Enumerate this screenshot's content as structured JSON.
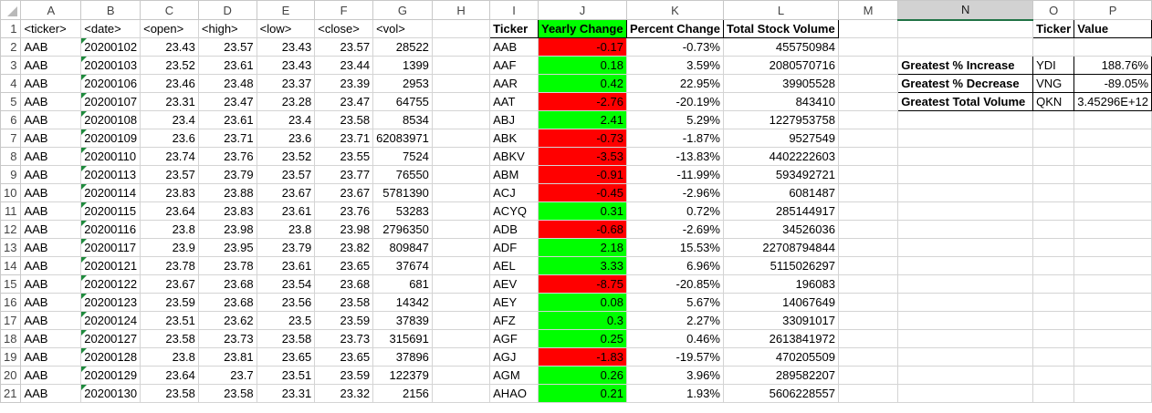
{
  "columns": [
    "A",
    "B",
    "C",
    "D",
    "E",
    "F",
    "G",
    "H",
    "I",
    "J",
    "K",
    "L",
    "M",
    "N",
    "O",
    "P"
  ],
  "headers": {
    "ticker": "<ticker>",
    "date": "<date>",
    "open": "<open>",
    "high": "<high>",
    "low": "<low>",
    "close": "<close>",
    "vol": "<vol>",
    "r_ticker": "Ticker",
    "r_yearly": "Yearly Change",
    "r_percent": "Percent Change",
    "r_volume": "Total Stock Volume",
    "s_ticker": "Ticker",
    "s_value": "Value"
  },
  "rows": [
    {
      "n": "2",
      "ticker": "AAB",
      "date": "20200102",
      "open": "23.43",
      "high": "23.57",
      "low": "23.43",
      "close": "23.57",
      "vol": "28522",
      "r_ticker": "AAB",
      "yearly": "-0.17",
      "pct": "-0.73%",
      "total": "455750984",
      "status": "neg"
    },
    {
      "n": "3",
      "ticker": "AAB",
      "date": "20200103",
      "open": "23.52",
      "high": "23.61",
      "low": "23.43",
      "close": "23.44",
      "vol": "1399",
      "r_ticker": "AAF",
      "yearly": "0.18",
      "pct": "3.59%",
      "total": "2080570716",
      "status": "pos"
    },
    {
      "n": "4",
      "ticker": "AAB",
      "date": "20200106",
      "open": "23.46",
      "high": "23.48",
      "low": "23.37",
      "close": "23.39",
      "vol": "2953",
      "r_ticker": "AAR",
      "yearly": "0.42",
      "pct": "22.95%",
      "total": "39905528",
      "status": "pos"
    },
    {
      "n": "5",
      "ticker": "AAB",
      "date": "20200107",
      "open": "23.31",
      "high": "23.47",
      "low": "23.28",
      "close": "23.47",
      "vol": "64755",
      "r_ticker": "AAT",
      "yearly": "-2.76",
      "pct": "-20.19%",
      "total": "843410",
      "status": "neg"
    },
    {
      "n": "6",
      "ticker": "AAB",
      "date": "20200108",
      "open": "23.4",
      "high": "23.61",
      "low": "23.4",
      "close": "23.58",
      "vol": "8534",
      "r_ticker": "ABJ",
      "yearly": "2.41",
      "pct": "5.29%",
      "total": "1227953758",
      "status": "pos"
    },
    {
      "n": "7",
      "ticker": "AAB",
      "date": "20200109",
      "open": "23.6",
      "high": "23.71",
      "low": "23.6",
      "close": "23.71",
      "vol": "62083971",
      "r_ticker": "ABK",
      "yearly": "-0.73",
      "pct": "-1.87%",
      "total": "9527549",
      "status": "neg"
    },
    {
      "n": "8",
      "ticker": "AAB",
      "date": "20200110",
      "open": "23.74",
      "high": "23.76",
      "low": "23.52",
      "close": "23.55",
      "vol": "7524",
      "r_ticker": "ABKV",
      "yearly": "-3.53",
      "pct": "-13.83%",
      "total": "4402222603",
      "status": "neg"
    },
    {
      "n": "9",
      "ticker": "AAB",
      "date": "20200113",
      "open": "23.57",
      "high": "23.79",
      "low": "23.57",
      "close": "23.77",
      "vol": "76550",
      "r_ticker": "ABM",
      "yearly": "-0.91",
      "pct": "-11.99%",
      "total": "593492721",
      "status": "neg"
    },
    {
      "n": "10",
      "ticker": "AAB",
      "date": "20200114",
      "open": "23.83",
      "high": "23.88",
      "low": "23.67",
      "close": "23.67",
      "vol": "5781390",
      "r_ticker": "ACJ",
      "yearly": "-0.45",
      "pct": "-2.96%",
      "total": "6081487",
      "status": "neg"
    },
    {
      "n": "11",
      "ticker": "AAB",
      "date": "20200115",
      "open": "23.64",
      "high": "23.83",
      "low": "23.61",
      "close": "23.76",
      "vol": "53283",
      "r_ticker": "ACYQ",
      "yearly": "0.31",
      "pct": "0.72%",
      "total": "285144917",
      "status": "pos"
    },
    {
      "n": "12",
      "ticker": "AAB",
      "date": "20200116",
      "open": "23.8",
      "high": "23.98",
      "low": "23.8",
      "close": "23.98",
      "vol": "2796350",
      "r_ticker": "ADB",
      "yearly": "-0.68",
      "pct": "-2.69%",
      "total": "34526036",
      "status": "neg"
    },
    {
      "n": "13",
      "ticker": "AAB",
      "date": "20200117",
      "open": "23.9",
      "high": "23.95",
      "low": "23.79",
      "close": "23.82",
      "vol": "809847",
      "r_ticker": "ADF",
      "yearly": "2.18",
      "pct": "15.53%",
      "total": "22708794844",
      "status": "pos"
    },
    {
      "n": "14",
      "ticker": "AAB",
      "date": "20200121",
      "open": "23.78",
      "high": "23.78",
      "low": "23.61",
      "close": "23.65",
      "vol": "37674",
      "r_ticker": "AEL",
      "yearly": "3.33",
      "pct": "6.96%",
      "total": "5115026297",
      "status": "pos"
    },
    {
      "n": "15",
      "ticker": "AAB",
      "date": "20200122",
      "open": "23.67",
      "high": "23.68",
      "low": "23.54",
      "close": "23.68",
      "vol": "681",
      "r_ticker": "AEV",
      "yearly": "-8.75",
      "pct": "-20.85%",
      "total": "196083",
      "status": "neg"
    },
    {
      "n": "16",
      "ticker": "AAB",
      "date": "20200123",
      "open": "23.59",
      "high": "23.68",
      "low": "23.56",
      "close": "23.58",
      "vol": "14342",
      "r_ticker": "AEY",
      "yearly": "0.08",
      "pct": "5.67%",
      "total": "14067649",
      "status": "pos"
    },
    {
      "n": "17",
      "ticker": "AAB",
      "date": "20200124",
      "open": "23.51",
      "high": "23.62",
      "low": "23.5",
      "close": "23.59",
      "vol": "37839",
      "r_ticker": "AFZ",
      "yearly": "0.3",
      "pct": "2.27%",
      "total": "33091017",
      "status": "pos"
    },
    {
      "n": "18",
      "ticker": "AAB",
      "date": "20200127",
      "open": "23.58",
      "high": "23.73",
      "low": "23.58",
      "close": "23.73",
      "vol": "315691",
      "r_ticker": "AGF",
      "yearly": "0.25",
      "pct": "0.46%",
      "total": "2613841972",
      "status": "pos"
    },
    {
      "n": "19",
      "ticker": "AAB",
      "date": "20200128",
      "open": "23.8",
      "high": "23.81",
      "low": "23.65",
      "close": "23.65",
      "vol": "37896",
      "r_ticker": "AGJ",
      "yearly": "-1.83",
      "pct": "-19.57%",
      "total": "470205509",
      "status": "neg"
    },
    {
      "n": "20",
      "ticker": "AAB",
      "date": "20200129",
      "open": "23.64",
      "high": "23.7",
      "low": "23.51",
      "close": "23.59",
      "vol": "122379",
      "r_ticker": "AGM",
      "yearly": "0.26",
      "pct": "3.96%",
      "total": "289582207",
      "status": "pos"
    },
    {
      "n": "21",
      "ticker": "AAB",
      "date": "20200130",
      "open": "23.58",
      "high": "23.58",
      "low": "23.31",
      "close": "23.32",
      "vol": "2156",
      "r_ticker": "AHAO",
      "yearly": "0.21",
      "pct": "1.93%",
      "total": "5606228557",
      "status": "pos"
    }
  ],
  "summary": [
    {
      "label": "Greatest % Increase",
      "ticker": "YDI",
      "value": "188.76%"
    },
    {
      "label": "Greatest % Decrease",
      "ticker": "VNG",
      "value": "-89.05%"
    },
    {
      "label": "Greatest Total Volume",
      "ticker": "QKN",
      "value": "3.45296E+12"
    }
  ],
  "colors": {
    "positive": "#00ff00",
    "negative": "#ff0000",
    "selected_header": "#d2d2d2",
    "accent": "#217346"
  }
}
